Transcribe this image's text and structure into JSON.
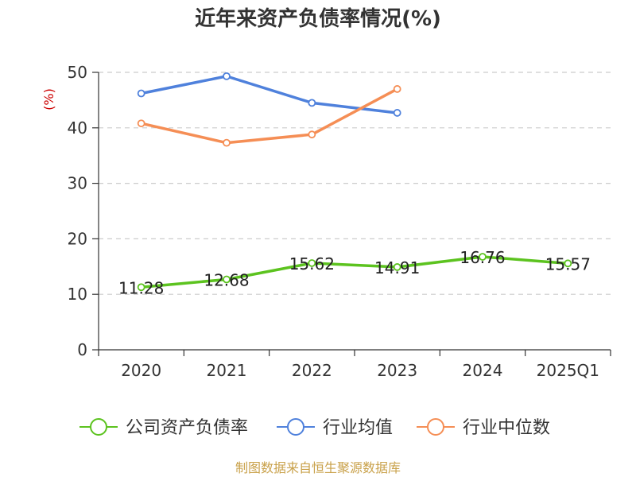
{
  "chart_data": {
    "type": "line",
    "title": "近年来资产负债率情况(%)",
    "ylabel": "(%)",
    "categories": [
      "2020",
      "2021",
      "2022",
      "2023",
      "2024",
      "2025Q1"
    ],
    "ylim": [
      0,
      50
    ],
    "yticks": [
      0,
      10,
      20,
      30,
      40,
      50
    ],
    "grid": true,
    "legend_position": "bottom",
    "series": [
      {
        "name": "公司资产负债率",
        "color": "#5cc31f",
        "values": [
          11.28,
          12.68,
          15.62,
          14.91,
          16.76,
          15.57
        ],
        "labels": [
          "11.28",
          "12.68",
          "15.62",
          "14.91",
          "16.76",
          "15.57"
        ]
      },
      {
        "name": "行业均值",
        "color": "#4f81dc",
        "values": [
          46.2,
          49.3,
          44.5,
          42.7,
          null,
          null
        ]
      },
      {
        "name": "行业中位数",
        "color": "#f58e55",
        "values": [
          40.8,
          37.3,
          38.8,
          47.0,
          null,
          null
        ]
      }
    ]
  },
  "source": "制图数据来自恒生聚源数据库",
  "colors": {
    "axis": "#333333",
    "grid": "#cccccc",
    "ylabel": "#cc0000",
    "source": "#c9a14a"
  }
}
